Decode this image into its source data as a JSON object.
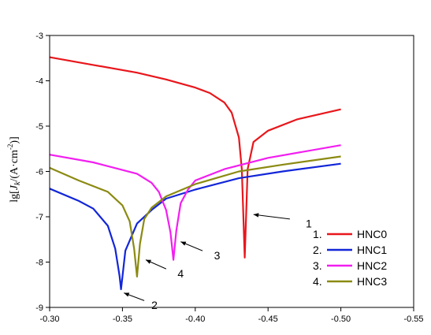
{
  "chart_data": {
    "type": "line",
    "title": "",
    "xlabel": "",
    "ylabel_parts": {
      "lg": "lg[",
      "J": "J",
      "k": "k",
      "slash": "/(A·cm",
      "exp": "-2",
      "close": ")]"
    },
    "xlim": [
      -0.3,
      -0.55
    ],
    "ylim": [
      -9,
      -3
    ],
    "xticks": [
      -0.3,
      -0.35,
      -0.4,
      -0.45,
      -0.5,
      -0.55
    ],
    "xtick_labels": [
      "-0.30",
      "-0.35",
      "-0.40",
      "-0.45",
      "-0.50",
      "-0.55"
    ],
    "yticks": [
      -3,
      -4,
      -5,
      -6,
      -7,
      -8,
      -9
    ],
    "ytick_labels": [
      "-3",
      "-4",
      "-5",
      "-6",
      "-7",
      "-8",
      "-9"
    ],
    "grid": false,
    "legend_position": "bottom-right",
    "series": [
      {
        "name": "HNC0",
        "legend_label": "1.",
        "color": "#e8161b",
        "x": [
          -0.3,
          -0.33,
          -0.36,
          -0.38,
          -0.4,
          -0.41,
          -0.42,
          -0.425,
          -0.43,
          -0.432,
          -0.434,
          -0.436,
          -0.44,
          -0.45,
          -0.47,
          -0.5
        ],
        "y": [
          -3.48,
          -3.65,
          -3.82,
          -3.97,
          -4.15,
          -4.27,
          -4.48,
          -4.7,
          -5.25,
          -5.95,
          -7.9,
          -5.95,
          -5.35,
          -5.1,
          -4.85,
          -4.63
        ]
      },
      {
        "name": "HNC1",
        "legend_label": "2.",
        "color": "#1226d8",
        "x": [
          -0.3,
          -0.32,
          -0.33,
          -0.34,
          -0.345,
          -0.348,
          -0.349,
          -0.352,
          -0.36,
          -0.37,
          -0.38,
          -0.4,
          -0.43,
          -0.46,
          -0.5
        ],
        "y": [
          -6.38,
          -6.65,
          -6.82,
          -7.2,
          -7.7,
          -8.3,
          -8.6,
          -7.75,
          -7.15,
          -6.85,
          -6.6,
          -6.4,
          -6.15,
          -6.0,
          -5.83
        ]
      },
      {
        "name": "HNC2",
        "legend_label": "3.",
        "color": "#f21ef0",
        "x": [
          -0.3,
          -0.33,
          -0.36,
          -0.37,
          -0.375,
          -0.38,
          -0.383,
          -0.385,
          -0.387,
          -0.39,
          -0.395,
          -0.4,
          -0.42,
          -0.45,
          -0.5
        ],
        "y": [
          -5.63,
          -5.8,
          -6.05,
          -6.25,
          -6.45,
          -6.85,
          -7.35,
          -7.95,
          -7.3,
          -6.7,
          -6.4,
          -6.2,
          -5.95,
          -5.7,
          -5.42
        ]
      },
      {
        "name": "HNC3",
        "legend_label": "4.",
        "color": "#8b8a12",
        "x": [
          -0.3,
          -0.32,
          -0.34,
          -0.35,
          -0.355,
          -0.358,
          -0.36,
          -0.362,
          -0.365,
          -0.37,
          -0.38,
          -0.4,
          -0.43,
          -0.46,
          -0.5
        ],
        "y": [
          -5.92,
          -6.2,
          -6.45,
          -6.75,
          -7.1,
          -7.7,
          -8.32,
          -7.6,
          -7.05,
          -6.8,
          -6.55,
          -6.28,
          -6.0,
          -5.85,
          -5.67
        ]
      }
    ],
    "annotations": [
      {
        "label": "1",
        "arrow_from": [
          -0.465,
          -7.05
        ],
        "arrow_to": [
          -0.44,
          -6.95
        ],
        "text_at": [
          -0.478,
          -7.15
        ]
      },
      {
        "label": "2",
        "arrow_from": [
          -0.365,
          -8.85
        ],
        "arrow_to": [
          -0.351,
          -8.68
        ],
        "text_at": [
          -0.372,
          -8.95
        ]
      },
      {
        "label": "3",
        "arrow_from": [
          -0.405,
          -7.75
        ],
        "arrow_to": [
          -0.39,
          -7.55
        ],
        "text_at": [
          -0.415,
          -7.85
        ]
      },
      {
        "label": "4",
        "arrow_from": [
          -0.38,
          -8.15
        ],
        "arrow_to": [
          -0.366,
          -7.95
        ],
        "text_at": [
          -0.39,
          -8.25
        ]
      }
    ]
  }
}
